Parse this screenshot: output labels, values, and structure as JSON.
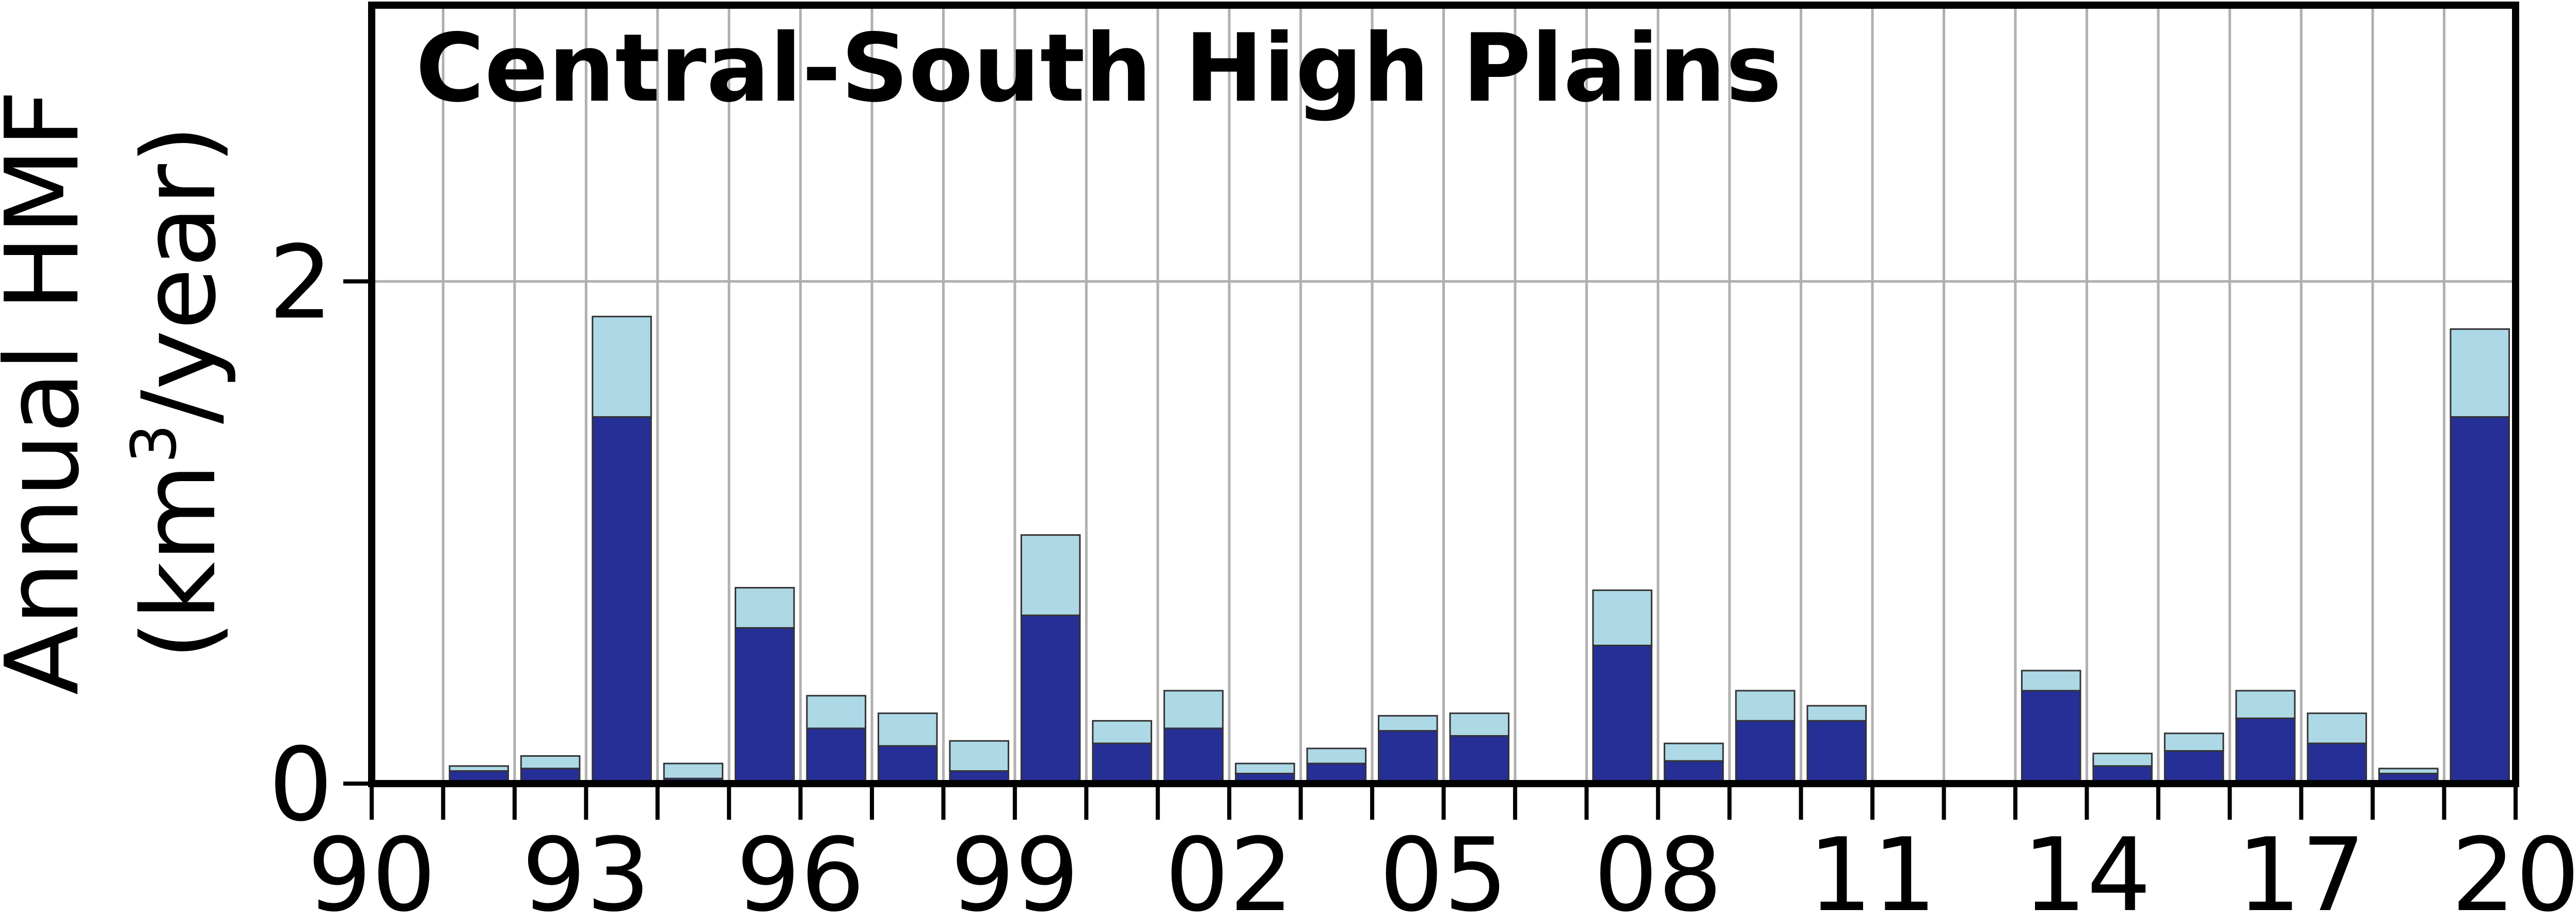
{
  "chart_data": {
    "type": "bar",
    "stacked": true,
    "title": "Central-South High Plains",
    "ylabel_line1": "Annual HMF",
    "ylabel_line2_prefix": "(km",
    "ylabel_line2_sup": "3",
    "ylabel_line2_suffix": "/year)",
    "xlim": [
      1990,
      2020
    ],
    "ylim": [
      0,
      3.1
    ],
    "yticks": [
      0,
      2
    ],
    "ytick_labels": [
      "0",
      "2"
    ],
    "xticks": [
      1990,
      1993,
      1996,
      1999,
      2002,
      2005,
      2008,
      2011,
      2014,
      2017,
      2020
    ],
    "xtick_labels": [
      "90",
      "93",
      "96",
      "99",
      "02",
      "05",
      "08",
      "11",
      "14",
      "17",
      "20"
    ],
    "grid": {
      "x": true,
      "y": true
    },
    "colors": {
      "lower": "#262f96",
      "upper": "#add8e6",
      "grid": "#b0b0b0",
      "edge": "#333333"
    },
    "years": [
      1991,
      1992,
      1993,
      1994,
      1995,
      1996,
      1997,
      1998,
      1999,
      2000,
      2001,
      2002,
      2003,
      2004,
      2005,
      2006,
      2007,
      2008,
      2009,
      2010,
      2011,
      2012,
      2013,
      2014,
      2015,
      2016,
      2017,
      2018,
      2019
    ],
    "lower_values": [
      0.05,
      0.06,
      1.46,
      0.02,
      0.62,
      0.22,
      0.15,
      0.05,
      0.67,
      0.16,
      0.22,
      0.04,
      0.08,
      0.21,
      0.19,
      0.01,
      0.55,
      0.09,
      0.25,
      0.25,
      0,
      0,
      0.37,
      0.07,
      0.13,
      0.26,
      0.16,
      0.04,
      1.46
    ],
    "total_values": [
      0.07,
      0.11,
      1.86,
      0.08,
      0.78,
      0.35,
      0.28,
      0.17,
      0.99,
      0.25,
      0.37,
      0.08,
      0.14,
      0.27,
      0.28,
      0.01,
      0.77,
      0.16,
      0.37,
      0.31,
      0,
      0,
      0.45,
      0.12,
      0.2,
      0.37,
      0.28,
      0.06,
      1.81
    ]
  }
}
